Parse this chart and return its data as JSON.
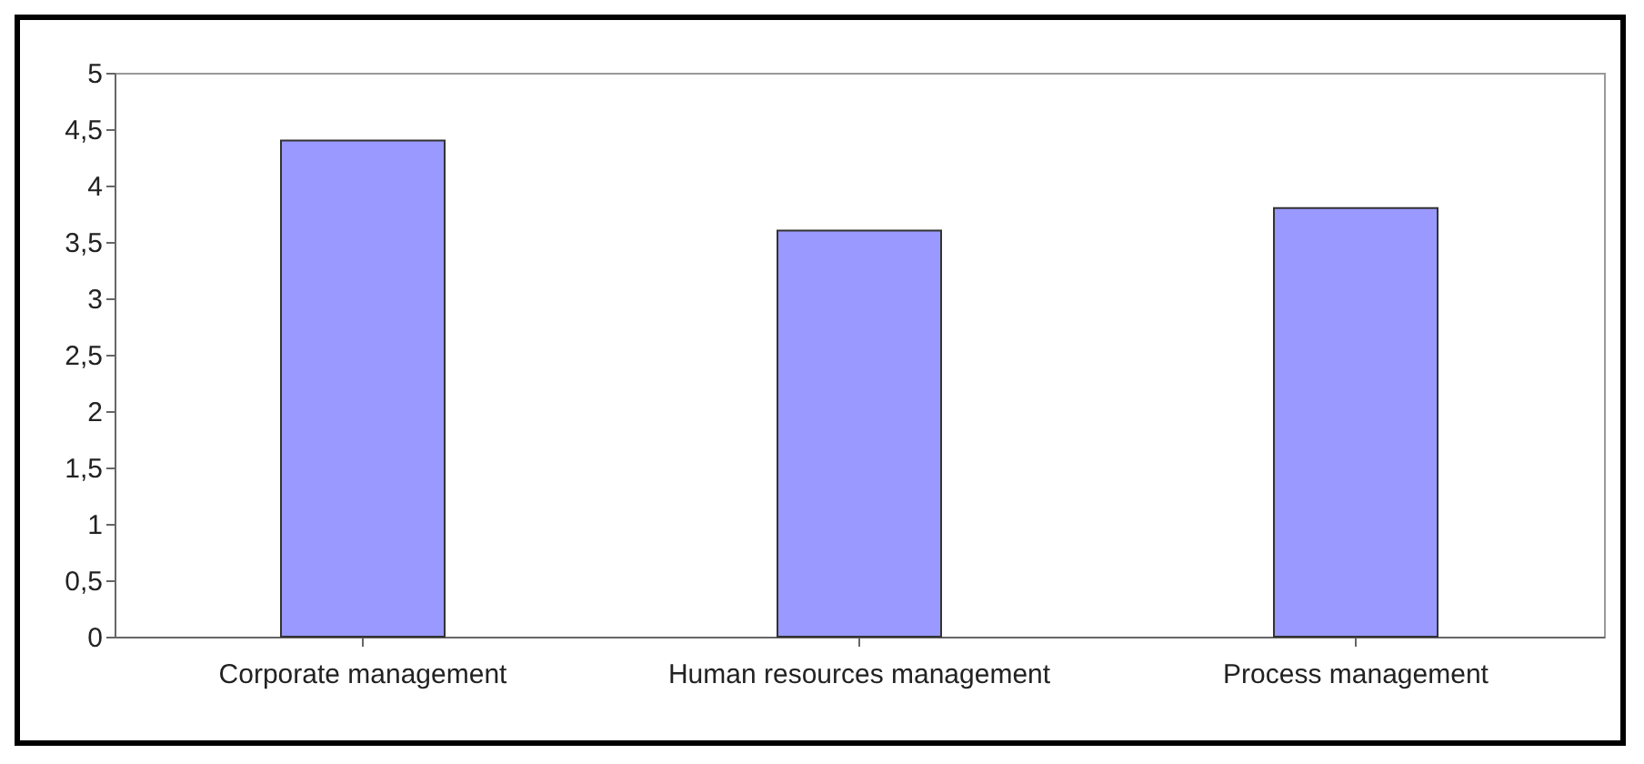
{
  "chart_data": {
    "type": "bar",
    "categories": [
      "Corporate management",
      "Human resources management",
      "Process management"
    ],
    "values": [
      4.4,
      3.6,
      3.8
    ],
    "color": "#9999ff",
    "ylim": [
      0,
      5
    ],
    "yticks": [
      0,
      {
        "value": 0.5,
        "label": "0,5"
      },
      1,
      {
        "value": 1.5,
        "label": "1,5"
      },
      2,
      {
        "value": 2.5,
        "label": "2,5"
      },
      3,
      {
        "value": 3.5,
        "label": "3,5"
      },
      4,
      {
        "value": 4.5,
        "label": "4,5"
      },
      5
    ],
    "grid": false
  }
}
